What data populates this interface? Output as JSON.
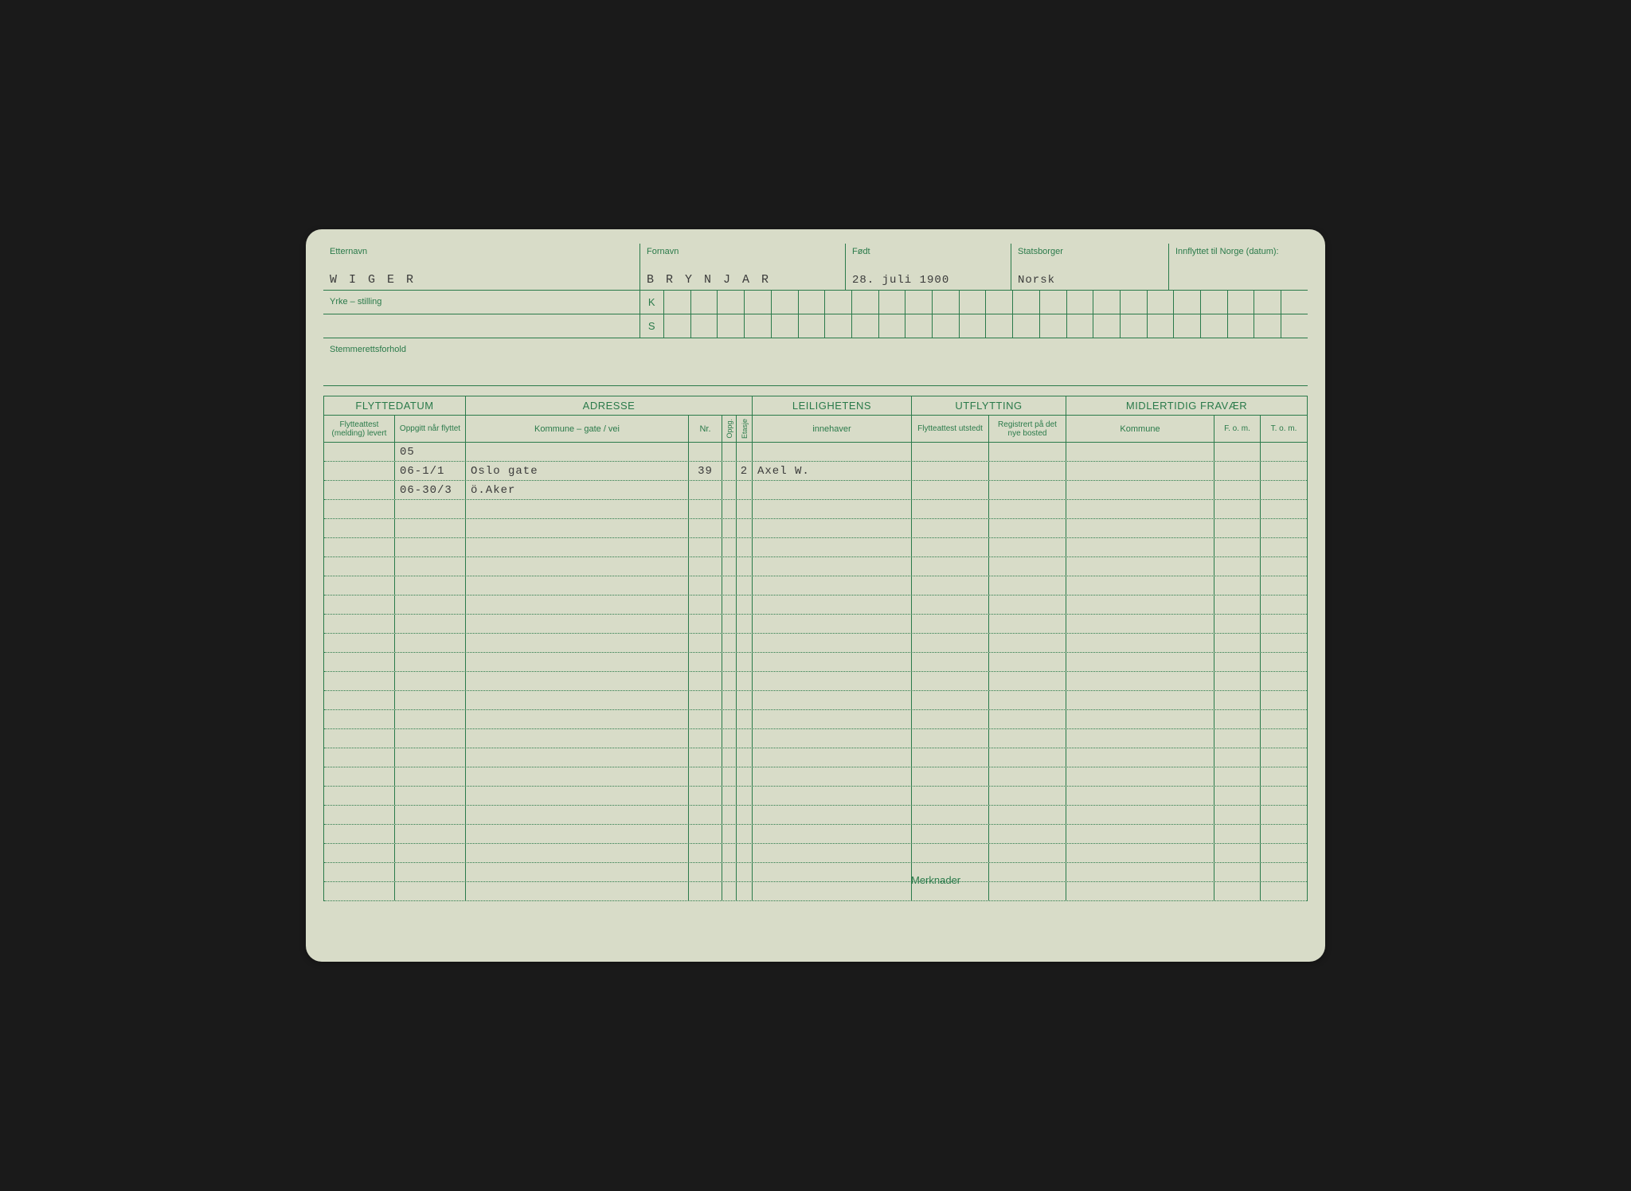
{
  "colors": {
    "card_bg": "#d8dcc8",
    "ink_green": "#2a7a4a",
    "typed_black": "#3a3a3a",
    "page_bg": "#1a1a1a"
  },
  "header": {
    "etternavn_label": "Etternavn",
    "etternavn_value": "W I G E R",
    "fornavn_label": "Fornavn",
    "fornavn_value": "B R Y N J A R",
    "fodt_label": "Født",
    "fodt_value": "28. juli  1900",
    "statsborger_label": "Statsborger",
    "statsborger_value": "Norsk",
    "innflyttet_label": "Innflyttet til Norge (datum):",
    "innflyttet_value": "",
    "yrke_label": "Yrke – stilling",
    "k_label": "K",
    "s_label": "S",
    "stemme_label": "Stemmerettsforhold"
  },
  "table": {
    "headers": {
      "flyttedatum": "FLYTTEDATUM",
      "flytteattest": "Flytteattest (melding) levert",
      "oppgitt": "Oppgitt når flyttet",
      "adresse": "ADRESSE",
      "kommune": "Kommune – gate / vei",
      "nr": "Nr.",
      "oppg": "Oppg.",
      "etasje": "Etasje",
      "leilighetens": "LEILIGHETENS",
      "innehaver": "innehaver",
      "utflytting": "UTFLYTTING",
      "utstedt": "Flytteattest utstedt",
      "registrert": "Registrert på det nye bosted",
      "midlertidig": "MIDLERTIDIG FRAVÆR",
      "mkommune": "Kommune",
      "fom": "F. o. m.",
      "tom": "T. o. m."
    },
    "rows": [
      {
        "flytteattest": "",
        "oppgitt": "05",
        "kommune": "",
        "nr": "",
        "oppg": "",
        "etasje": "",
        "innehaver": "",
        "utstedt": "",
        "registrert": "",
        "mkommune": "",
        "fom": "",
        "tom": ""
      },
      {
        "flytteattest": "",
        "oppgitt": "06-1/1",
        "kommune": "Oslo gate",
        "nr": "39",
        "oppg": "",
        "etasje": "2",
        "innehaver": "Axel W.",
        "utstedt": "",
        "registrert": "",
        "mkommune": "",
        "fom": "",
        "tom": ""
      },
      {
        "flytteattest": "",
        "oppgitt": "06-30/3",
        "kommune": "ö.Aker",
        "nr": "",
        "oppg": "",
        "etasje": "",
        "innehaver": "",
        "utstedt": "",
        "registrert": "",
        "mkommune": "",
        "fom": "",
        "tom": ""
      }
    ],
    "blank_rows": 21,
    "merknader_label": "Merknader"
  }
}
